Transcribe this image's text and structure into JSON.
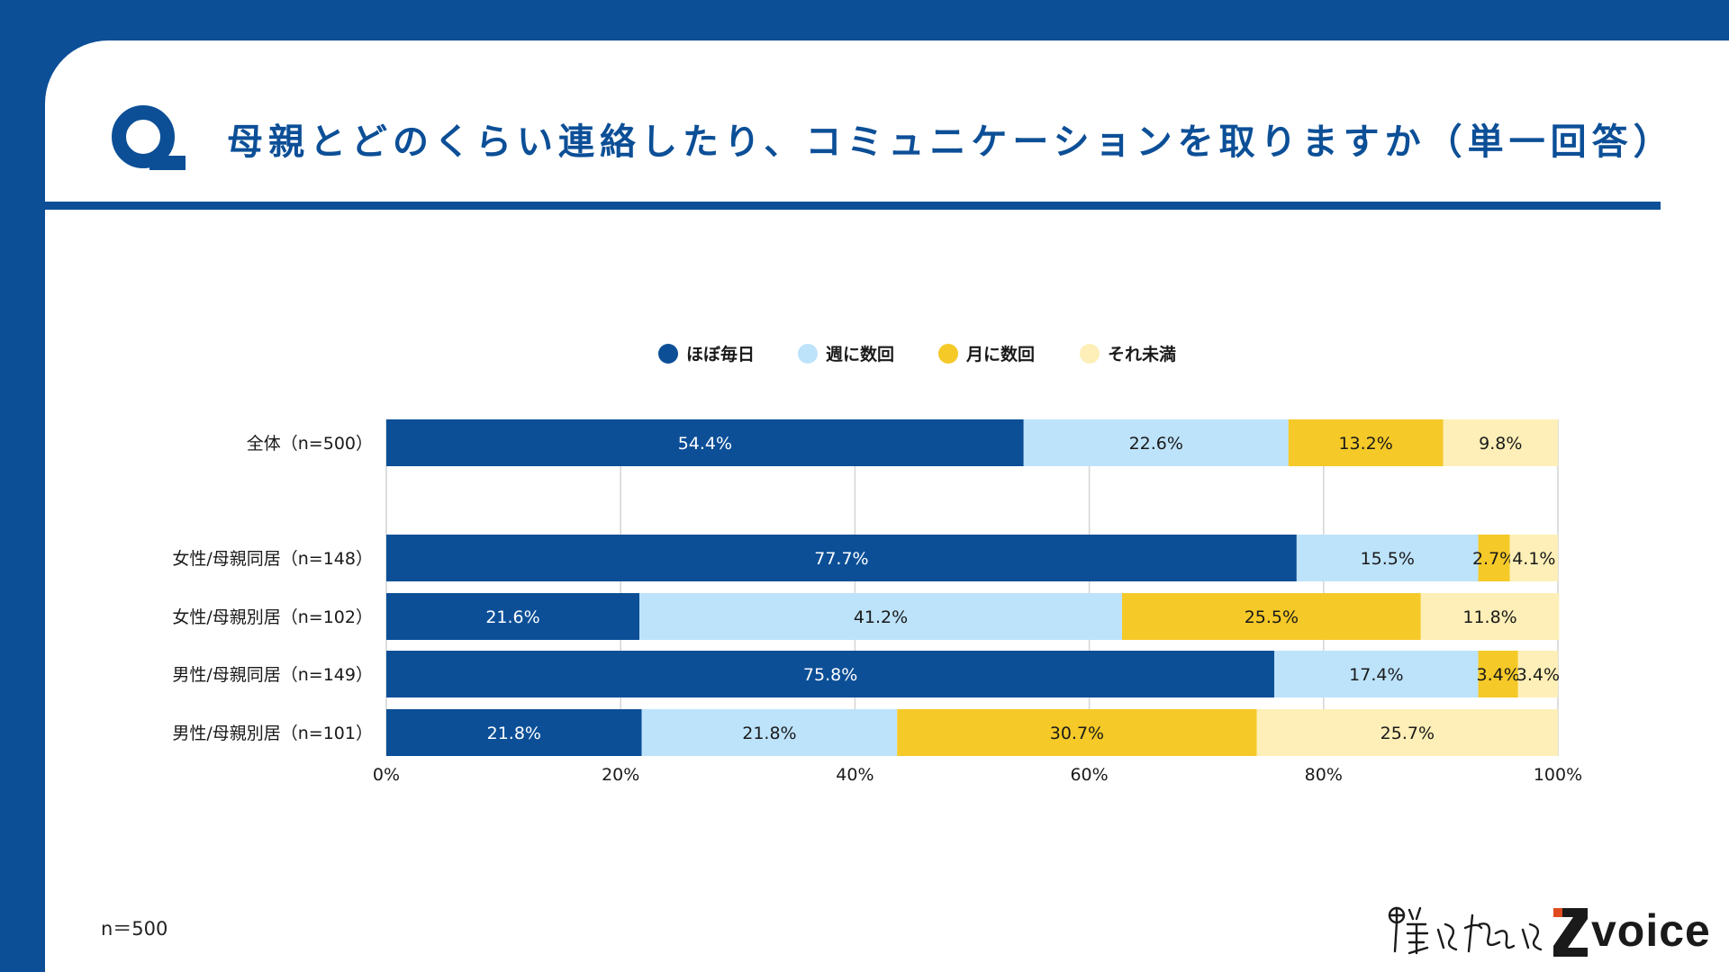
{
  "header": {
    "title": "母親とどのくらい連絡したり、コミュニケーションを取りますか（単一回答）",
    "q_icon": "q-letter-icon"
  },
  "footer": {
    "n_note": "n＝500",
    "logo_text": "voice",
    "logo_script": "僕と私と"
  },
  "colors": {
    "brand": "#0c4f97",
    "series": [
      "#0c4f97",
      "#bde3fb",
      "#f5c928",
      "#fdefb7"
    ],
    "label_light": "#ffffff",
    "label_dark": "#1a1a1a"
  },
  "chart_data": {
    "type": "bar",
    "orientation": "horizontal",
    "stacked": true,
    "title": "母親とどのくらい連絡したり、コミュニケーションを取りますか（単一回答）",
    "categories": [
      "全体（n=500）",
      "女性/母親同居（n=148）",
      "女性/母親別居（n=102）",
      "男性/母親同居（n=149）",
      "男性/母親別居（n=101）"
    ],
    "series": [
      {
        "name": "ほぼ毎日",
        "values": [
          54.4,
          77.7,
          21.6,
          75.8,
          21.8
        ]
      },
      {
        "name": "週に数回",
        "values": [
          22.6,
          15.5,
          41.2,
          17.4,
          21.8
        ]
      },
      {
        "name": "月に数回",
        "values": [
          13.2,
          2.7,
          25.5,
          3.4,
          30.7
        ]
      },
      {
        "name": "それ未満",
        "values": [
          9.8,
          4.1,
          11.8,
          3.4,
          25.7
        ]
      }
    ],
    "xlim": [
      0,
      100
    ],
    "xticks": [
      "0%",
      "20%",
      "40%",
      "60%",
      "80%",
      "100%"
    ],
    "grid": true,
    "legend": "top-center",
    "value_suffix": "%"
  }
}
